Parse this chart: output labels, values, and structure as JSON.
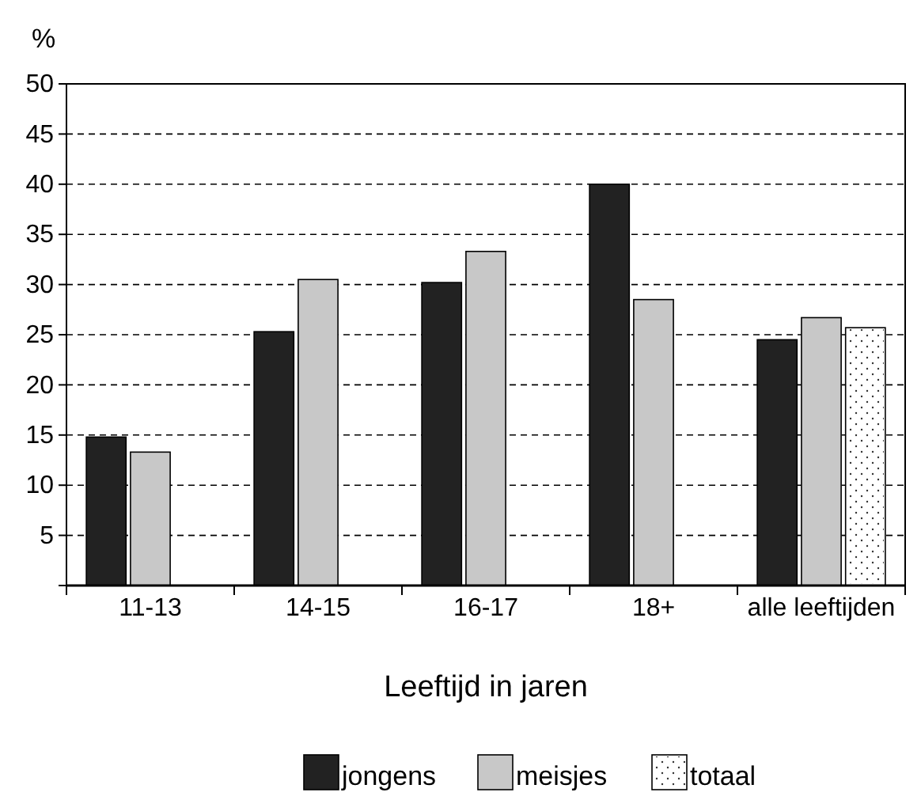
{
  "chart_data": {
    "type": "bar",
    "ylabel": "%",
    "xlabel": "Leeftijd in jaren",
    "categories": [
      "11-13",
      "14-15",
      "16-17",
      "18+",
      "alle leeftijden"
    ],
    "series": [
      {
        "name": "jongens",
        "color": "#222222",
        "values": [
          14.8,
          25.3,
          30.2,
          40,
          24.5
        ]
      },
      {
        "name": "meisjes",
        "color": "#c8c8c8",
        "values": [
          13.3,
          30.5,
          33.3,
          28.5,
          26.7
        ]
      },
      {
        "name": "totaal",
        "color": "#ffffff",
        "values": [
          null,
          null,
          null,
          null,
          25.7
        ]
      }
    ],
    "ylim": [
      0,
      50
    ],
    "yticks": [
      5,
      10,
      15,
      20,
      25,
      30,
      35,
      40,
      45,
      50
    ],
    "grid": "y",
    "legend": "bottom"
  }
}
